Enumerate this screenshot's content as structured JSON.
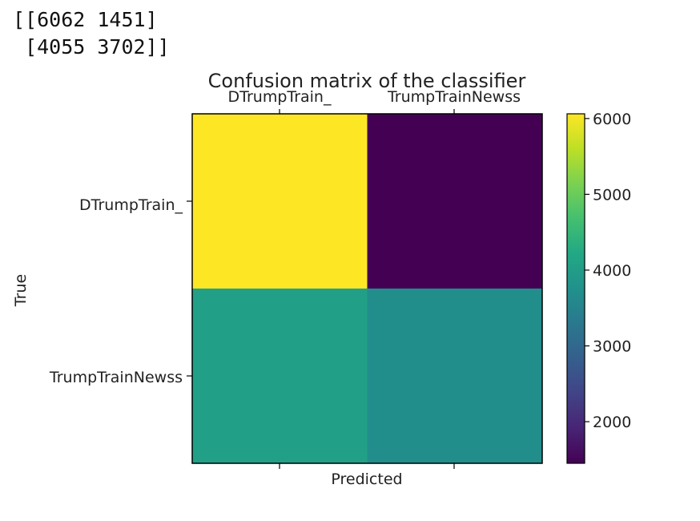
{
  "console_output": {
    "line1": "[[6062 1451]",
    "line2": " [4055 3702]]"
  },
  "chart_data": {
    "type": "heatmap",
    "title": "Confusion matrix of the classifier",
    "xlabel": "Predicted",
    "ylabel": "True",
    "x_categories": [
      "DTrumpTrain_",
      "TrumpTrainNewss"
    ],
    "y_categories": [
      "DTrumpTrain_",
      "TrumpTrainNewss"
    ],
    "values": [
      [
        6062,
        1451
      ],
      [
        4055,
        3702
      ]
    ],
    "colormap": "viridis",
    "x_tick_position": "top",
    "grid": false,
    "colorbar": {
      "min": 1451,
      "max": 6062,
      "ticks": [
        2000,
        3000,
        4000,
        5000,
        6000
      ],
      "tick_labels": [
        "2000",
        "3000",
        "4000",
        "5000",
        "6000"
      ]
    }
  }
}
